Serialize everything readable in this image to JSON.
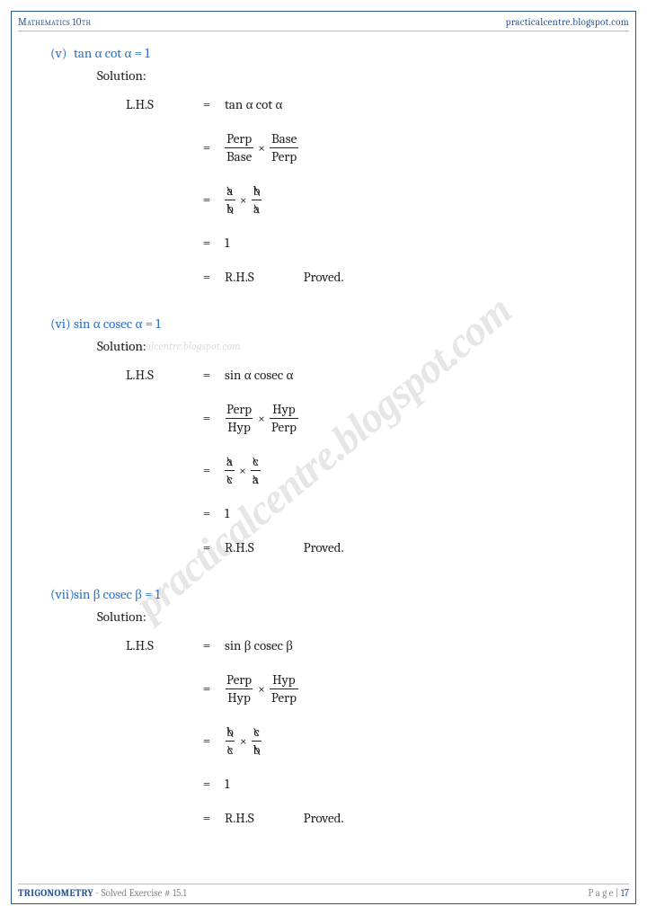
{
  "header": {
    "left": "Mathematics 10th",
    "right": "practicalcentre.blogspot.com"
  },
  "watermark": "practicalcentre.blogspot.com",
  "watermark_small": "practicalcentre.blogspot.com",
  "problems": [
    {
      "roman": "(v)",
      "identity": "tan α cot α  =  1",
      "solution_label": "Solution:",
      "lhs_label": "L.H.S",
      "step1_rhs": "tan α cot α",
      "frac1": {
        "n1": "Perp",
        "d1": "Base",
        "n2": "Base",
        "d2": "Perp"
      },
      "frac2": {
        "n1": "a",
        "d1": "b",
        "n2": "b",
        "d2": "a"
      },
      "step4_rhs": "1",
      "step5_rhs": "R.H.S",
      "proved": "Proved."
    },
    {
      "roman": "(vi)",
      "identity": "sin α cosec α  =  1",
      "solution_label": "Solution:",
      "lhs_label": "L.H.S",
      "step1_rhs": "sin α cosec α",
      "frac1": {
        "n1": "Perp",
        "d1": "Hyp",
        "n2": "Hyp",
        "d2": "Perp"
      },
      "frac2": {
        "n1": "a",
        "d1": "c",
        "n2": "c",
        "d2": "a"
      },
      "step4_rhs": "1",
      "step5_rhs": "R.H.S",
      "proved": "Proved."
    },
    {
      "roman": "(vii)",
      "identity": "sin β cosec β  =  1",
      "solution_label": "Solution:",
      "lhs_label": "L.H.S",
      "step1_rhs": "sin β cosec β",
      "frac1": {
        "n1": "Perp",
        "d1": "Hyp",
        "n2": "Hyp",
        "d2": "Perp"
      },
      "frac2": {
        "n1": "b",
        "d1": "c",
        "n2": "c",
        "d2": "b"
      },
      "step4_rhs": "1",
      "step5_rhs": "R.H.S",
      "proved": "Proved."
    }
  ],
  "footer": {
    "chapter": "TRIGONOMETRY",
    "exercise": " - Solved Exercise # 15.1",
    "page_label": "P a g e  | ",
    "page_num": "17"
  },
  "colors": {
    "border": "#2a5599",
    "heading_blue": "#2a6fc9",
    "text": "#222222",
    "watermark": "rgba(100,100,100,0.16)"
  }
}
